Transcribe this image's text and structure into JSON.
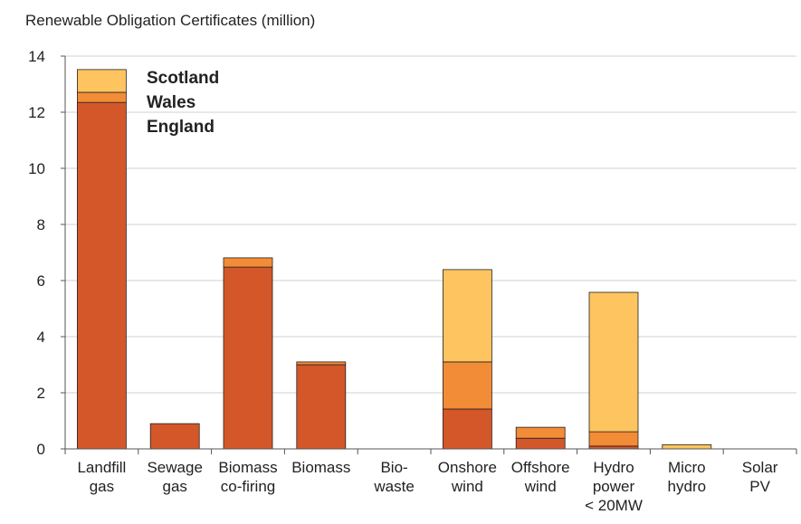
{
  "chart_data": {
    "type": "stacked_bar",
    "title": "Renewable Obligation Certificates (million)",
    "categories": [
      "Landfill\ngas",
      "Sewage\ngas",
      "Biomass\nco-firing",
      "Biomass",
      "Bio-\nwaste",
      "Onshore\nwind",
      "Offshore\nwind",
      "Hydro\npower\n< 20MW",
      "Micro\nhydro",
      "Solar\nPV"
    ],
    "series": [
      {
        "name": "England",
        "color": "#d4572a",
        "values": [
          12.35,
          0.9,
          6.48,
          3.0,
          0,
          1.42,
          0.38,
          0.1,
          0,
          0
        ]
      },
      {
        "name": "Wales",
        "color": "#f28c37",
        "values": [
          0.36,
          0,
          0.33,
          0.1,
          0,
          1.68,
          0.39,
          0.51,
          0,
          0
        ]
      },
      {
        "name": "Scotland",
        "color": "#fdc45f",
        "values": [
          0.81,
          0,
          0,
          0,
          0,
          3.29,
          0,
          4.97,
          0.15,
          0
        ]
      }
    ],
    "ylim": [
      0,
      14
    ],
    "yticks": [
      0,
      2,
      4,
      6,
      8,
      10,
      12,
      14
    ],
    "grid": true,
    "legend": "upper left"
  }
}
